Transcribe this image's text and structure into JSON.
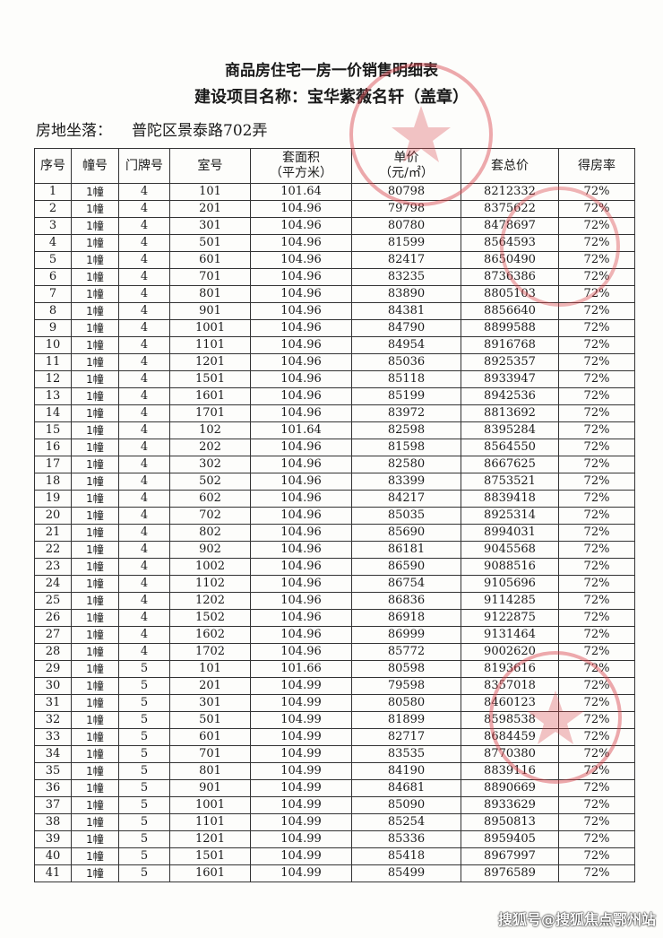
{
  "document": {
    "title": "商品房住宅一房一价销售明细表",
    "subtitle": "建设项目名称：宝华紫薇名轩（盖章）",
    "address_label": "房地坐落：",
    "address_value": "普陀区景泰路702弄",
    "stamp_color": "#d9434b",
    "watermark": "搜狐号@搜狐焦点鄂州站"
  },
  "table": {
    "headers": [
      "序号",
      "幢号",
      "门牌号",
      "室号",
      "套面积\n（平方米）",
      "单价\n（元/㎡）",
      "套总价",
      "得房率"
    ],
    "rows": [
      [
        "1",
        "1幢",
        "4",
        "101",
        "101.64",
        "80798",
        "8212332",
        "72%"
      ],
      [
        "2",
        "1幢",
        "4",
        "201",
        "104.96",
        "79798",
        "8375622",
        "72%"
      ],
      [
        "3",
        "1幢",
        "4",
        "301",
        "104.96",
        "80780",
        "8478697",
        "72%"
      ],
      [
        "4",
        "1幢",
        "4",
        "501",
        "104.96",
        "81599",
        "8564593",
        "72%"
      ],
      [
        "5",
        "1幢",
        "4",
        "601",
        "104.96",
        "82417",
        "8650490",
        "72%"
      ],
      [
        "6",
        "1幢",
        "4",
        "701",
        "104.96",
        "83235",
        "8736386",
        "72%"
      ],
      [
        "7",
        "1幢",
        "4",
        "801",
        "104.96",
        "83890",
        "8805103",
        "72%"
      ],
      [
        "8",
        "1幢",
        "4",
        "901",
        "104.96",
        "84381",
        "8856640",
        "72%"
      ],
      [
        "9",
        "1幢",
        "4",
        "1001",
        "104.96",
        "84790",
        "8899588",
        "72%"
      ],
      [
        "10",
        "1幢",
        "4",
        "1101",
        "104.96",
        "84954",
        "8916768",
        "72%"
      ],
      [
        "11",
        "1幢",
        "4",
        "1201",
        "104.96",
        "85036",
        "8925357",
        "72%"
      ],
      [
        "12",
        "1幢",
        "4",
        "1501",
        "104.96",
        "85118",
        "8933947",
        "72%"
      ],
      [
        "13",
        "1幢",
        "4",
        "1601",
        "104.96",
        "85199",
        "8942536",
        "72%"
      ],
      [
        "14",
        "1幢",
        "4",
        "1701",
        "104.96",
        "83972",
        "8813692",
        "72%"
      ],
      [
        "15",
        "1幢",
        "4",
        "102",
        "101.64",
        "82598",
        "8395284",
        "72%"
      ],
      [
        "16",
        "1幢",
        "4",
        "202",
        "104.96",
        "81598",
        "8564550",
        "72%"
      ],
      [
        "17",
        "1幢",
        "4",
        "302",
        "104.96",
        "82580",
        "8667625",
        "72%"
      ],
      [
        "18",
        "1幢",
        "4",
        "502",
        "104.96",
        "83399",
        "8753521",
        "72%"
      ],
      [
        "19",
        "1幢",
        "4",
        "602",
        "104.96",
        "84217",
        "8839418",
        "72%"
      ],
      [
        "20",
        "1幢",
        "4",
        "702",
        "104.96",
        "85035",
        "8925314",
        "72%"
      ],
      [
        "21",
        "1幢",
        "4",
        "802",
        "104.96",
        "85690",
        "8994031",
        "72%"
      ],
      [
        "22",
        "1幢",
        "4",
        "902",
        "104.96",
        "86181",
        "9045568",
        "72%"
      ],
      [
        "23",
        "1幢",
        "4",
        "1002",
        "104.96",
        "86590",
        "9088516",
        "72%"
      ],
      [
        "24",
        "1幢",
        "4",
        "1102",
        "104.96",
        "86754",
        "9105696",
        "72%"
      ],
      [
        "25",
        "1幢",
        "4",
        "1202",
        "104.96",
        "86836",
        "9114285",
        "72%"
      ],
      [
        "26",
        "1幢",
        "4",
        "1502",
        "104.96",
        "86918",
        "9122875",
        "72%"
      ],
      [
        "27",
        "1幢",
        "4",
        "1602",
        "104.96",
        "86999",
        "9131464",
        "72%"
      ],
      [
        "28",
        "1幢",
        "4",
        "1702",
        "104.96",
        "85772",
        "9002620",
        "72%"
      ],
      [
        "29",
        "1幢",
        "5",
        "101",
        "101.66",
        "80598",
        "8193616",
        "72%"
      ],
      [
        "30",
        "1幢",
        "5",
        "201",
        "104.99",
        "79598",
        "8357018",
        "72%"
      ],
      [
        "31",
        "1幢",
        "5",
        "301",
        "104.99",
        "80580",
        "8460123",
        "72%"
      ],
      [
        "32",
        "1幢",
        "5",
        "501",
        "104.99",
        "81899",
        "8598538",
        "72%"
      ],
      [
        "33",
        "1幢",
        "5",
        "601",
        "104.99",
        "82717",
        "8684459",
        "72%"
      ],
      [
        "34",
        "1幢",
        "5",
        "701",
        "104.99",
        "83535",
        "8770380",
        "72%"
      ],
      [
        "35",
        "1幢",
        "5",
        "801",
        "104.99",
        "84190",
        "8839116",
        "72%"
      ],
      [
        "36",
        "1幢",
        "5",
        "901",
        "104.99",
        "84681",
        "8890669",
        "72%"
      ],
      [
        "37",
        "1幢",
        "5",
        "1001",
        "104.99",
        "85090",
        "8933629",
        "72%"
      ],
      [
        "38",
        "1幢",
        "5",
        "1101",
        "104.99",
        "85254",
        "8950813",
        "72%"
      ],
      [
        "39",
        "1幢",
        "5",
        "1201",
        "104.99",
        "85336",
        "8959405",
        "72%"
      ],
      [
        "40",
        "1幢",
        "5",
        "1501",
        "104.99",
        "85418",
        "8967997",
        "72%"
      ],
      [
        "41",
        "1幢",
        "5",
        "1601",
        "104.99",
        "85499",
        "8976589",
        "72%"
      ]
    ]
  }
}
